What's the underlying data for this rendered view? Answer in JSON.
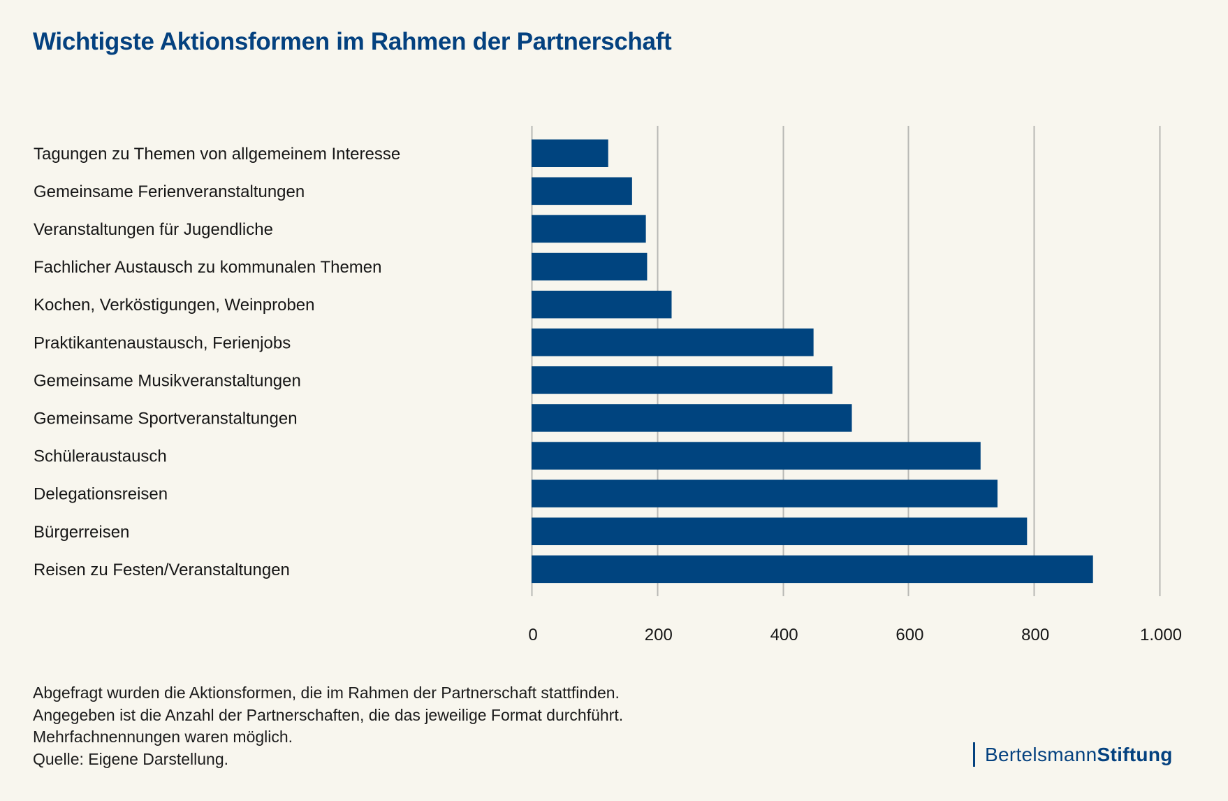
{
  "colors": {
    "background": "#f8f6ee",
    "bar": "#00447f",
    "title": "#04417f",
    "grid": "#b8b8b4"
  },
  "notes": [
    "Abgefragt wurden die Aktionsformen, die im Rahmen der Partnerschaft stattfinden.",
    "Angegeben ist die Anzahl der Partnerschaften, die das jeweilige Format durchführt.",
    "Mehrfachnennungen waren möglich.",
    "Quelle: Eigene Darstellung."
  ],
  "logo": {
    "light": "Bertelsmann",
    "bold": "Stiftung"
  },
  "chart_data": {
    "type": "bar",
    "orientation": "horizontal",
    "title": "Wichtigste Aktionsformen im Rahmen der Partnerschaft",
    "xlabel": "",
    "ylabel": "",
    "categories": [
      "Tagungen zu Themen von allgemeinem Interesse",
      "Gemeinsame Ferienveranstaltungen",
      "Veranstaltungen für Jugendliche",
      "Fachlicher Austausch zu kommunalen Themen",
      "Kochen, Verköstigungen, Weinproben",
      "Praktikantenaustausch, Ferienjobs",
      "Gemeinsame Musikveranstaltungen",
      "Gemeinsame Sportveranstaltungen",
      "Schüleraustausch",
      "Delegationsreisen",
      "Bürgerreisen",
      "Reisen zu Festen/Veranstaltungen"
    ],
    "values": [
      122,
      160,
      182,
      184,
      223,
      449,
      479,
      510,
      715,
      742,
      789,
      894
    ],
    "xlim": [
      0,
      1000
    ],
    "xticks": [
      0,
      200,
      400,
      600,
      800,
      1000
    ],
    "xtick_labels": [
      "0",
      "200",
      "400",
      "600",
      "800",
      "1.000"
    ],
    "grid": true,
    "legend": "none"
  }
}
